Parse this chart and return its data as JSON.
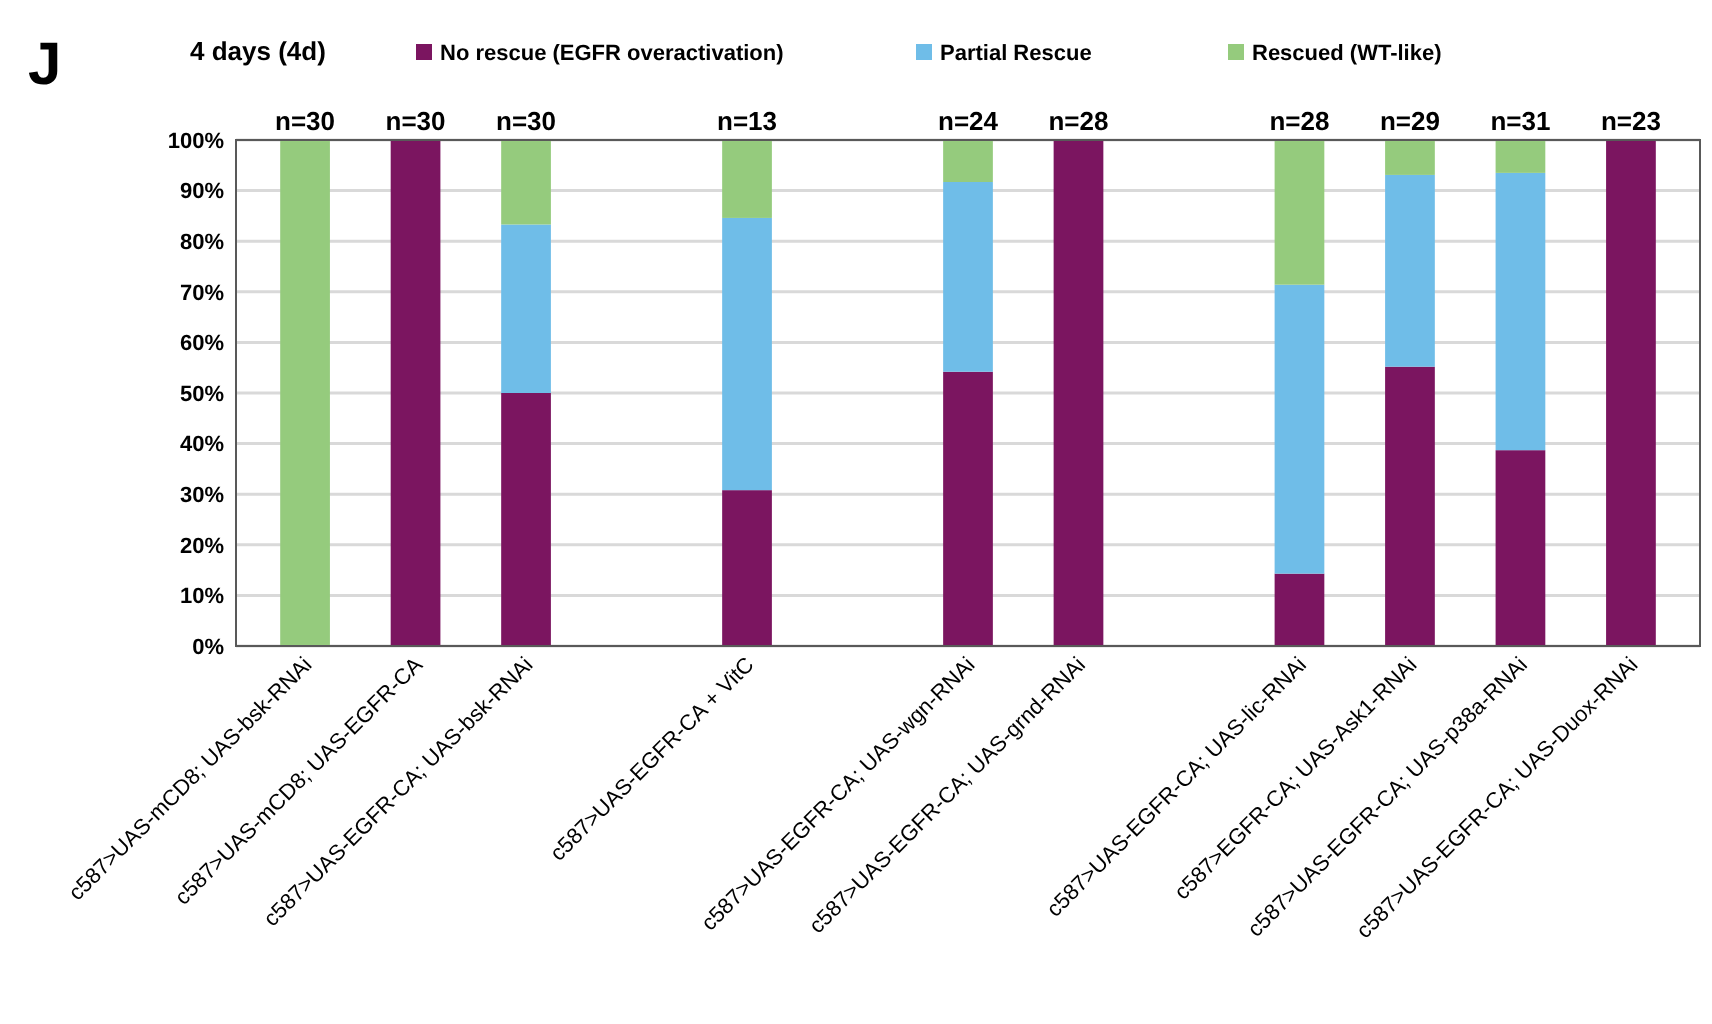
{
  "chart_data": {
    "type": "bar",
    "title": "4 days (4d)",
    "annotations": [
      "J",
      {
        "text": "n=30",
        "x": "c587>UAS-mCD8; UAS-bsk-RNAi",
        "y": 100
      },
      {
        "text": "n=30",
        "x": "c587>UAS-mCD8; UAS-EGFR-CA",
        "y": 100
      },
      {
        "text": "n=30",
        "x": "c587>UAS-EGFR-CA; UAS-bsk-RNAi",
        "y": 100
      },
      {
        "text": "n=13",
        "x": "c587>UAS-EGFR-CA + VitC",
        "y": 100
      },
      {
        "text": "n=24",
        "x": "c587>UAS-EGFR-CA; UAS-wgn-RNAi",
        "y": 100
      },
      {
        "text": "n=28",
        "x": "c587>UAS-EGFR-CA; UAS-grnd-RNAi",
        "y": 100
      },
      {
        "text": "n=28",
        "x": "c587>UAS-EGFR-CA; UAS-lic-RNAi",
        "y": 100
      },
      {
        "text": "n=29",
        "x": "c587>EGFR-CA; UAS-Ask1-RNAi",
        "y": 100
      },
      {
        "text": "n=31",
        "x": "c587>UAS-EGFR-CA; UAS-p38a-RNAi",
        "y": 100
      },
      {
        "text": "n=23",
        "x": "c587>UAS-EGFR-CA; UAS-Duox-RNAi",
        "y": 100
      }
    ],
    "stacked": true,
    "categories": [
      "c587>UAS-mCD8; UAS-bsk-RNAi",
      "c587>UAS-mCD8; UAS-EGFR-CA",
      "c587>UAS-EGFR-CA; UAS-bsk-RNAi",
      null,
      "c587>UAS-EGFR-CA + VitC",
      null,
      "c587>UAS-EGFR-CA; UAS-wgn-RNAi",
      "c587>UAS-EGFR-CA; UAS-grnd-RNAi",
      null,
      "c587>UAS-EGFR-CA; UAS-lic-RNAi",
      "c587>EGFR-CA; UAS-Ask1-RNAi",
      "c587>UAS-EGFR-CA; UAS-p38a-RNAi",
      "c587>UAS-EGFR-CA; UAS-Duox-RNAi"
    ],
    "series": [
      {
        "name": "No rescue (EGFR overactivation)",
        "color": "#7b1560",
        "values": [
          0,
          100,
          50,
          null,
          30.8,
          null,
          54.2,
          100,
          null,
          14.3,
          55.2,
          38.7,
          100
        ]
      },
      {
        "name": "Partial Rescue",
        "color": "#6fbde8",
        "values": [
          0,
          0,
          33.3,
          null,
          53.8,
          null,
          37.5,
          0,
          null,
          57.1,
          37.9,
          54.8,
          0
        ]
      },
      {
        "name": "Rescued (WT-like)",
        "color": "#95cb7d",
        "values": [
          100,
          0,
          16.7,
          null,
          15.4,
          null,
          8.3,
          0,
          null,
          28.6,
          6.9,
          6.5,
          0
        ]
      }
    ],
    "ylim": [
      0,
      100
    ],
    "yticks": [
      {
        "value": 0,
        "label": "0%"
      },
      {
        "value": 10,
        "label": "10%"
      },
      {
        "value": 20,
        "label": "20%"
      },
      {
        "value": 30,
        "label": "30%"
      },
      {
        "value": 40,
        "label": "40%"
      },
      {
        "value": 50,
        "label": "50%"
      },
      {
        "value": 60,
        "label": "60%"
      },
      {
        "value": 70,
        "label": "70%"
      },
      {
        "value": 80,
        "label": "80%"
      },
      {
        "value": 90,
        "label": "90%"
      },
      {
        "value": 100,
        "label": "100%"
      }
    ],
    "grid": "y",
    "legend": "top"
  }
}
